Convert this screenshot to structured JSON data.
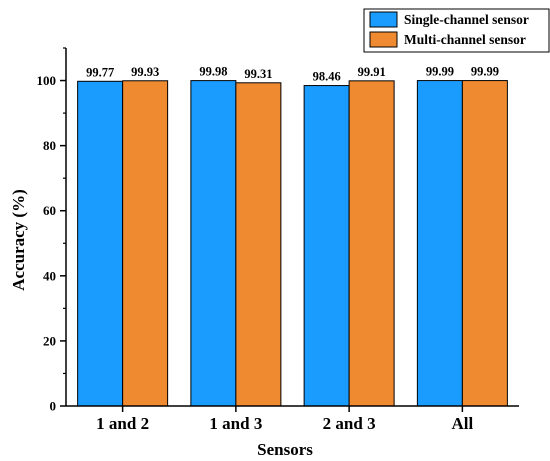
{
  "chart_data": {
    "type": "bar",
    "xlabel": "Sensors",
    "ylabel": "Accuracy (%)",
    "ylim": [
      0,
      110
    ],
    "yticks": [
      0,
      20,
      40,
      60,
      80,
      100
    ],
    "categories": [
      "1 and 2",
      "1 and 3",
      "2 and 3",
      "All"
    ],
    "series": [
      {
        "name": "Single-channel sensor",
        "color": "#1a9cff",
        "values": [
          99.77,
          99.98,
          98.46,
          99.99
        ],
        "labels": [
          "99.77",
          "99.98",
          "98.46",
          "99.99"
        ]
      },
      {
        "name": "Multi-channel sensor",
        "color": "#f08a30",
        "values": [
          99.93,
          99.31,
          99.91,
          99.99
        ],
        "labels": [
          "99.93",
          "99.31",
          "99.91",
          "99.99"
        ]
      }
    ],
    "legend_position": "top-right",
    "grid": false
  }
}
